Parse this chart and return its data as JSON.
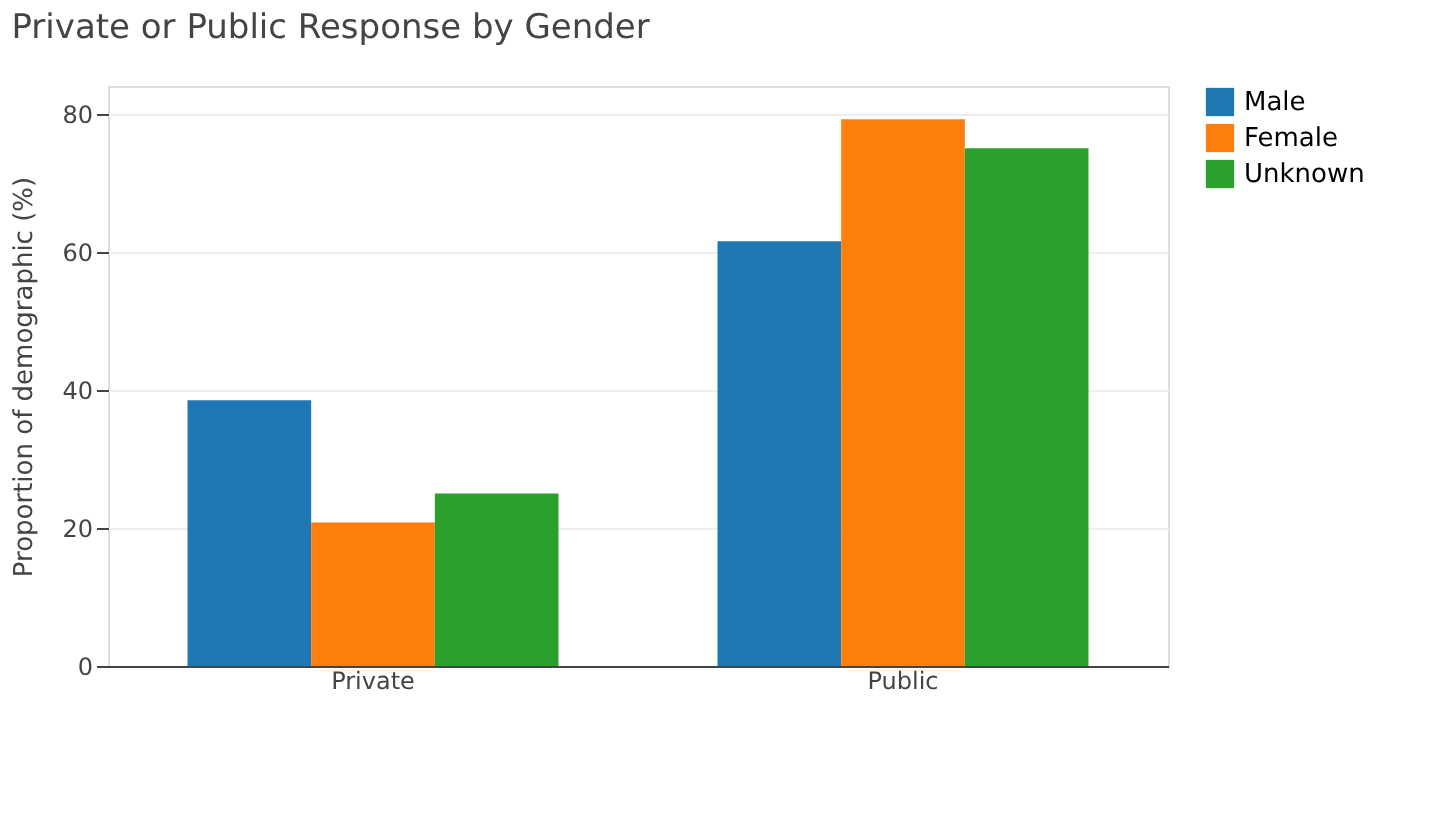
{
  "chart_data": {
    "type": "bar",
    "title": "Private or Public Response by Gender",
    "ylabel": "Proportion of demographic (%)",
    "categories": [
      "Private",
      "Public"
    ],
    "series": [
      {
        "name": "Male",
        "color": "#1f77b4",
        "values": [
          38.5,
          61.5
        ]
      },
      {
        "name": "Female",
        "color": "#ff7f0e",
        "values": [
          20.8,
          79.2
        ]
      },
      {
        "name": "Unknown",
        "color": "#2ca02c",
        "values": [
          25,
          75
        ]
      }
    ],
    "ylim": [
      0,
      84
    ],
    "yticks": [
      0,
      20,
      40,
      60,
      80
    ],
    "grid": "y",
    "legend": "top right"
  }
}
